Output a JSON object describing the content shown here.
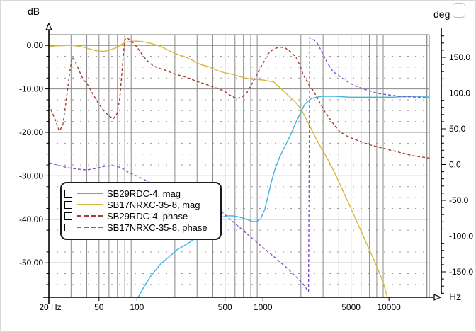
{
  "window": {
    "kind": "frequency-response-graph"
  },
  "axes": {
    "left": {
      "unit": "dB",
      "ticks": [
        {
          "v": 0,
          "label": "0.00"
        },
        {
          "v": -10,
          "label": "-10.00"
        },
        {
          "v": -20,
          "label": "-20.00"
        },
        {
          "v": -30,
          "label": "-30.00"
        },
        {
          "v": -40,
          "label": "-40.00"
        },
        {
          "v": -50,
          "label": "-50.00"
        }
      ],
      "minor_step_db": 2.5
    },
    "right": {
      "unit": "deg",
      "ticks": [
        {
          "v": 150,
          "label": "150.0"
        },
        {
          "v": 100,
          "label": "100.0"
        },
        {
          "v": 50,
          "label": "50.0"
        },
        {
          "v": 0,
          "label": "0.0"
        },
        {
          "v": -50,
          "label": "-50.0"
        },
        {
          "v": -100,
          "label": "-100.0"
        },
        {
          "v": -150,
          "label": "-150.0"
        }
      ],
      "minor_step_deg": 10
    },
    "x": {
      "unit": "Hz",
      "scale": "log",
      "ticks": [
        {
          "f": 20,
          "label": "20 Hz"
        },
        {
          "f": 50,
          "label": "50"
        },
        {
          "f": 100,
          "label": "100"
        },
        {
          "f": 500,
          "label": "500"
        },
        {
          "f": 1000,
          "label": "1000"
        },
        {
          "f": 5000,
          "label": "5000"
        },
        {
          "f": 10000,
          "label": "10000"
        }
      ]
    }
  },
  "colors": {
    "grid_major": "#8a8a8a",
    "grid_minor": "#9a9a9a",
    "axis": "#000000",
    "mag_tweeter": "#3fb3e3",
    "mag_woofer": "#d8b93f",
    "phase_tweeter": "#a43c2e",
    "phase_woofer": "#8b4fc9"
  },
  "legend": {
    "items": [
      {
        "label": "SB29RDC-4, mag",
        "color": "#3fb3e3",
        "dash": "solid"
      },
      {
        "label": "SB17NRXC-35-8, mag",
        "color": "#d8b93f",
        "dash": "solid"
      },
      {
        "label": "SB29RDC-4, phase",
        "color": "#a43c2e",
        "dash": "dashed"
      },
      {
        "label": "SB17NRXC-35-8, phase",
        "color": "#8b4fc9",
        "dash": "dashed"
      }
    ]
  },
  "chart_data": {
    "type": "line",
    "x_axis": {
      "label": "Hz",
      "scale": "log",
      "range": [
        20,
        21000
      ]
    },
    "y_axis_left": {
      "label": "dB",
      "range": [
        -57.9,
        2.5
      ],
      "gridlines": [
        0,
        -10,
        -20,
        -30,
        -40,
        -50
      ]
    },
    "y_axis_right": {
      "label": "deg",
      "range": [
        -183,
        183
      ],
      "ticks": [
        150,
        100,
        50,
        0,
        -50,
        -100,
        -150
      ]
    },
    "grid": "log-major-solid, 2.5dB-minor-dotted",
    "legend_position": "lower-left-overlay",
    "series": [
      {
        "name": "SB29RDC-4, mag",
        "axis": "left",
        "style": "solid",
        "color": "#3fb3e3",
        "points": [
          [
            95,
            -60
          ],
          [
            103,
            -57.8
          ],
          [
            115,
            -55.3
          ],
          [
            130,
            -52.9
          ],
          [
            154,
            -50.3
          ],
          [
            179,
            -48.7
          ],
          [
            208,
            -47
          ],
          [
            235,
            -46.1
          ],
          [
            265,
            -45.2
          ],
          [
            315,
            -43.4
          ],
          [
            374,
            -41.5
          ],
          [
            455,
            -39.7
          ],
          [
            510,
            -39.2
          ],
          [
            577,
            -39.2
          ],
          [
            654,
            -39.5
          ],
          [
            746,
            -40
          ],
          [
            825,
            -40.5
          ],
          [
            890,
            -40.5
          ],
          [
            959,
            -39.9
          ],
          [
            1035,
            -37.7
          ],
          [
            1100,
            -34.5
          ],
          [
            1170,
            -31.2
          ],
          [
            1245,
            -28.5
          ],
          [
            1365,
            -25.5
          ],
          [
            1455,
            -23.9
          ],
          [
            1550,
            -22.3
          ],
          [
            1655,
            -20.6
          ],
          [
            1765,
            -18.7
          ],
          [
            1880,
            -16.9
          ],
          [
            2005,
            -15.3
          ],
          [
            2140,
            -13.6
          ],
          [
            2280,
            -12.8
          ],
          [
            2430,
            -12.2
          ],
          [
            2655,
            -11.9
          ],
          [
            2935,
            -11.7
          ],
          [
            3790,
            -11.7
          ],
          [
            4900,
            -11.9
          ],
          [
            7200,
            -11.9
          ],
          [
            10600,
            -11.9
          ],
          [
            15600,
            -11.7
          ],
          [
            21000,
            -11.7
          ]
        ]
      },
      {
        "name": "SB17NRXC-35-8, mag",
        "axis": "left",
        "style": "solid",
        "color": "#d8b93f",
        "points": [
          [
            20,
            -0.3
          ],
          [
            22.6,
            -0.1
          ],
          [
            26,
            -0.05
          ],
          [
            29,
            0.05
          ],
          [
            32,
            -0.05
          ],
          [
            35,
            -0.2
          ],
          [
            39,
            -0.5
          ],
          [
            43,
            -0.9
          ],
          [
            47,
            -1.2
          ],
          [
            51.5,
            -1.35
          ],
          [
            57,
            -1.3
          ],
          [
            63,
            -0.9
          ],
          [
            69,
            -0.5
          ],
          [
            75,
            0.2
          ],
          [
            81,
            0.7
          ],
          [
            89,
            0.95
          ],
          [
            99,
            1.0
          ],
          [
            109,
            0.9
          ],
          [
            120,
            0.7
          ],
          [
            133,
            0.35
          ],
          [
            146,
            0
          ],
          [
            162,
            -0.5
          ],
          [
            183,
            -1.3
          ],
          [
            213,
            -2.1
          ],
          [
            244,
            -2.7
          ],
          [
            284,
            -3.6
          ],
          [
            320,
            -4.4
          ],
          [
            372,
            -4.9
          ],
          [
            437,
            -5.8
          ],
          [
            497,
            -6.3
          ],
          [
            565,
            -6.6
          ],
          [
            643,
            -7.1
          ],
          [
            731,
            -7.5
          ],
          [
            830,
            -7.8
          ],
          [
            1005,
            -7.95
          ],
          [
            1215,
            -8.4
          ],
          [
            1366,
            -9.7
          ],
          [
            1545,
            -11.2
          ],
          [
            1765,
            -12.7
          ],
          [
            2005,
            -14.6
          ],
          [
            2280,
            -17.7
          ],
          [
            2590,
            -21
          ],
          [
            2940,
            -23.9
          ],
          [
            3340,
            -26.7
          ],
          [
            3790,
            -29.9
          ],
          [
            4305,
            -33.4
          ],
          [
            4890,
            -36.9
          ],
          [
            5555,
            -40.5
          ],
          [
            6310,
            -44.1
          ],
          [
            7170,
            -47.7
          ],
          [
            8140,
            -51.3
          ],
          [
            8990,
            -54.5
          ],
          [
            9700,
            -57.9
          ],
          [
            9900,
            -60
          ]
        ]
      },
      {
        "name": "SB29RDC-4, phase",
        "axis": "right",
        "style": "dashed",
        "color": "#a43c2e",
        "points": [
          [
            20,
            83.7
          ],
          [
            21,
            74.8
          ],
          [
            22.7,
            60.9
          ],
          [
            24.2,
            47
          ],
          [
            25.8,
            55
          ],
          [
            27.5,
            90.6
          ],
          [
            29.3,
            130.2
          ],
          [
            30.7,
            150
          ],
          [
            32.4,
            144.1
          ],
          [
            35.2,
            129.2
          ],
          [
            37.7,
            118.3
          ],
          [
            40.2,
            113.4
          ],
          [
            44.1,
            100.5
          ],
          [
            48.7,
            87.6
          ],
          [
            54.2,
            75.7
          ],
          [
            59.5,
            68.8
          ],
          [
            64.9,
            63.9
          ],
          [
            69.3,
            70.8
          ],
          [
            72.9,
            90.6
          ],
          [
            75.4,
            120.3
          ],
          [
            78.2,
            155
          ],
          [
            80,
            174
          ],
          [
            82,
            177
          ],
          [
            84.5,
            176.7
          ],
          [
            90,
            172.8
          ],
          [
            99.4,
            164.9
          ],
          [
            108.8,
            155
          ],
          [
            119.6,
            146
          ],
          [
            132.6,
            139.1
          ],
          [
            145.8,
            135.1
          ],
          [
            161.7,
            133.2
          ],
          [
            195,
            127.2
          ],
          [
            244,
            122.3
          ],
          [
            300,
            116.3
          ],
          [
            363,
            111.4
          ],
          [
            437,
            106.4
          ],
          [
            497,
            102.5
          ],
          [
            565,
            95.5
          ],
          [
            625,
            92.6
          ],
          [
            682,
            94.6
          ],
          [
            746,
            100.5
          ],
          [
            830,
            115.3
          ],
          [
            920,
            130.2
          ],
          [
            1005,
            142.1
          ],
          [
            1100,
            155
          ],
          [
            1215,
            161.9
          ],
          [
            1365,
            164.4
          ],
          [
            1510,
            162.9
          ],
          [
            1655,
            157.9
          ],
          [
            1830,
            150
          ],
          [
            1975,
            138.1
          ],
          [
            2090,
            125.2
          ],
          [
            2220,
            117.3
          ],
          [
            2365,
            108.4
          ],
          [
            2510,
            103.5
          ],
          [
            2745,
            90.6
          ],
          [
            3130,
            72.8
          ],
          [
            3560,
            58.9
          ],
          [
            4060,
            46
          ],
          [
            4620,
            40.1
          ],
          [
            5555,
            34.2
          ],
          [
            7170,
            27.2
          ],
          [
            9250,
            22.3
          ],
          [
            11950,
            17.3
          ],
          [
            15400,
            12.4
          ],
          [
            21000,
            9
          ]
        ]
      },
      {
        "name": "SB17NRXC-35-8, phase",
        "axis": "right",
        "style": "dashed",
        "color": "#8b4fc9",
        "points": [
          [
            20,
            2.5
          ],
          [
            23.3,
            -0.5
          ],
          [
            28.3,
            -4.5
          ],
          [
            34.3,
            -6.4
          ],
          [
            39.9,
            -7.4
          ],
          [
            47,
            -5.4
          ],
          [
            55.6,
            -2.5
          ],
          [
            64.9,
            -1.5
          ],
          [
            75.4,
            -4.5
          ],
          [
            86.6,
            -11.4
          ],
          [
            101,
            -16.3
          ],
          [
            115,
            -21.3
          ],
          [
            126,
            -25.2
          ],
          [
            167,
            -34.2
          ],
          [
            218,
            -42.1
          ],
          [
            284,
            -51
          ],
          [
            363,
            -56.9
          ],
          [
            437,
            -60.9
          ],
          [
            585,
            -80.7
          ],
          [
            755,
            -97.5
          ],
          [
            975,
            -114.4
          ],
          [
            1250,
            -130.2
          ],
          [
            1610,
            -147
          ],
          [
            2080,
            -166.8
          ],
          [
            2300,
            -177.7
          ],
          [
            2355,
            177.7
          ],
          [
            2655,
            171.8
          ],
          [
            2935,
            157.9
          ],
          [
            3250,
            142.1
          ],
          [
            3600,
            130.2
          ],
          [
            4160,
            122.3
          ],
          [
            4730,
            115.3
          ],
          [
            5370,
            110.4
          ],
          [
            6100,
            106.4
          ],
          [
            6920,
            103.5
          ],
          [
            8140,
            99.5
          ],
          [
            9900,
            97.5
          ],
          [
            12000,
            95.5
          ],
          [
            15400,
            94.6
          ],
          [
            21000,
            93.6
          ]
        ]
      }
    ]
  }
}
